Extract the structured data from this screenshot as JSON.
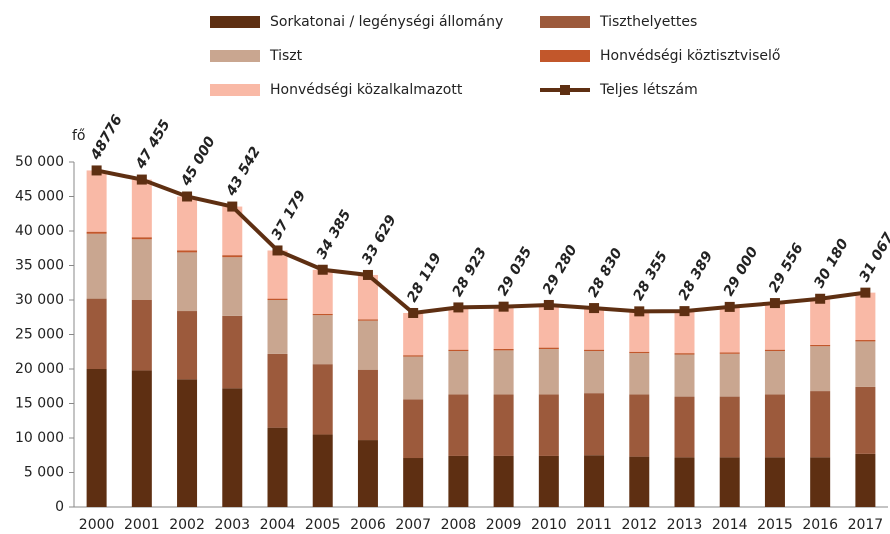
{
  "chart_data": {
    "type": "stacked_bar",
    "y_label": "fő",
    "categories": [
      "2000",
      "2001",
      "2002",
      "2003",
      "2004",
      "2005",
      "2006",
      "2007",
      "2008",
      "2009",
      "2010",
      "2011",
      "2012",
      "2013",
      "2014",
      "2015",
      "2016",
      "2017"
    ],
    "series": [
      {
        "name": "Sorkatonai / legénységi állomány",
        "color": "#5e2f12",
        "values": [
          20000,
          19800,
          18500,
          17200,
          11500,
          10500,
          9700,
          7100,
          7400,
          7400,
          7400,
          7500,
          7300,
          7200,
          7200,
          7200,
          7200,
          7700
        ]
      },
      {
        "name": "Tiszthelyettes",
        "color": "#9c5a3c",
        "values": [
          10200,
          10200,
          9900,
          10500,
          10700,
          10200,
          10200,
          8500,
          8900,
          8900,
          8900,
          9000,
          9000,
          8800,
          8800,
          9100,
          9600,
          9700
        ]
      },
      {
        "name": "Tiszt",
        "color": "#c9a690",
        "values": [
          9400,
          8800,
          8500,
          8500,
          7800,
          7100,
          7100,
          6200,
          6300,
          6400,
          6600,
          6100,
          6000,
          6100,
          6200,
          6300,
          6500,
          6600
        ]
      },
      {
        "name": "Honvédségi köztisztviselő",
        "color": "#c2572b",
        "values": [
          300,
          300,
          300,
          300,
          200,
          200,
          200,
          200,
          200,
          200,
          200,
          200,
          200,
          200,
          200,
          200,
          200,
          200
        ]
      },
      {
        "name": "Honvédségi közalkalmazott",
        "color": "#f9b9a6",
        "values": [
          8876,
          8355,
          7800,
          7042,
          6979,
          6385,
          6429,
          6119,
          6123,
          6135,
          6180,
          6030,
          5855,
          6089,
          6600,
          6756,
          6680,
          6867
        ]
      }
    ],
    "line_series": {
      "name": "Teljes létszám",
      "color": "#5e2f12",
      "values": [
        48776,
        47455,
        45000,
        43542,
        37179,
        34385,
        33629,
        28119,
        28923,
        29035,
        29280,
        28830,
        28355,
        28389,
        29000,
        29556,
        30180,
        31067
      ],
      "value_labels": [
        "48776",
        "47 455",
        "45 000",
        "43 542",
        "37 179",
        "34 385",
        "33 629",
        "28 119",
        "28 923",
        "29 035",
        "29 280",
        "28 830",
        "28 355",
        "28 389",
        "29 000",
        "29 556",
        "30 180",
        "31 067"
      ]
    },
    "ylim": [
      0,
      50000
    ],
    "yticks": [
      0,
      {
        "value": 5000,
        "label": "5 000"
      },
      {
        "value": 10000,
        "label": "10 000"
      },
      {
        "value": 15000,
        "label": "15 000"
      },
      {
        "value": 20000,
        "label": "20 000"
      },
      {
        "value": 25000,
        "label": "25 000"
      },
      {
        "value": 30000,
        "label": "30 000"
      },
      {
        "value": 35000,
        "label": "35 000"
      },
      {
        "value": 40000,
        "label": "40 000"
      },
      {
        "value": 45000,
        "label": "45 000"
      },
      {
        "value": 50000,
        "label": "50 000"
      }
    ],
    "grid": false
  }
}
